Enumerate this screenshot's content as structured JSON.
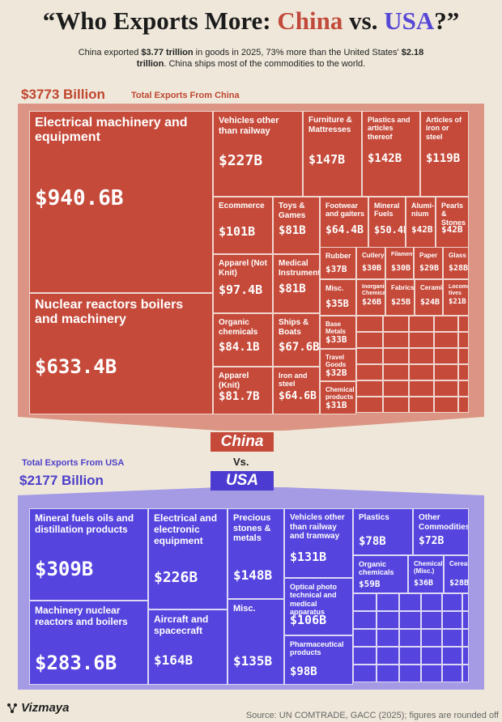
{
  "header": {
    "title_prefix": "“Who Exports More: ",
    "title_china": "China",
    "title_vs": " vs. ",
    "title_usa": "USA",
    "title_suffix": "?”",
    "subtitle_1": "China exported ",
    "subtitle_2": "$3.77 trillion",
    "subtitle_3": " in goods in 2025, 73% more than the United States' ",
    "subtitle_4": "$2.18 trillion",
    "subtitle_5": ". China ships most of the commodities to the world."
  },
  "china_total": {
    "value": "$3773 Billion",
    "label": "Total Exports From China"
  },
  "usa_total": {
    "value": "$2177 Billion",
    "label": "Total Exports From USA"
  },
  "badges": {
    "china": "China",
    "vs": "Vs.",
    "usa": "USA"
  },
  "footer": {
    "brand": "Vizmaya",
    "source": "Source: UN COMTRADE, GACC (2025); figures are rounded off"
  },
  "colors": {
    "china": "#c54a3a",
    "usa": "#5544dd",
    "china_funnel": "#dc9584",
    "usa_funnel": "#a49be4",
    "background": "#efe8da"
  },
  "chart_data": [
    {
      "type": "treemap",
      "title": "Total Exports From China",
      "total": "$3773 Billion",
      "items": [
        {
          "label": "Electrical machinery and equipment",
          "value_label": "$940.6B",
          "value": 940.6
        },
        {
          "label": "Nuclear reactors boilers and machinery",
          "value_label": "$633.4B",
          "value": 633.4
        },
        {
          "label": "Vehicles other than railway",
          "value_label": "$227B",
          "value": 227
        },
        {
          "label": "Furniture & Mattresses",
          "value_label": "$147B",
          "value": 147
        },
        {
          "label": "Plastics and articles thereof",
          "value_label": "$142B",
          "value": 142
        },
        {
          "label": "Articles of iron or steel",
          "value_label": "$119B",
          "value": 119
        },
        {
          "label": "Ecommerce",
          "value_label": "$101B",
          "value": 101
        },
        {
          "label": "Toys & Games",
          "value_label": "$81B",
          "value": 81
        },
        {
          "label": "Footwear and gaiters",
          "value_label": "$64.4B",
          "value": 64.4
        },
        {
          "label": "Mineral Fuels",
          "value_label": "$50.4B",
          "value": 50.4
        },
        {
          "label": "Alumi- nium",
          "value_label": "$42B",
          "value": 42
        },
        {
          "label": "Pearls & Stones",
          "value_label": "$42B",
          "value": 42
        },
        {
          "label": "Apparel (Not Knit)",
          "value_label": "$97.4B",
          "value": 97.4
        },
        {
          "label": "Medical Instruments",
          "value_label": "$81B",
          "value": 81
        },
        {
          "label": "Rubber",
          "value_label": "$37B",
          "value": 37
        },
        {
          "label": "Cutlery",
          "value_label": "$30B",
          "value": 30
        },
        {
          "label": "Filaments",
          "value_label": "$30B",
          "value": 30
        },
        {
          "label": "Paper",
          "value_label": "$29B",
          "value": 29
        },
        {
          "label": "Glass",
          "value_label": "$28B",
          "value": 28
        },
        {
          "label": "Misc.",
          "value_label": "$35B",
          "value": 35
        },
        {
          "label": "Inorganic Chemicals",
          "value_label": "$26B",
          "value": 26
        },
        {
          "label": "Fabrics",
          "value_label": "$25B",
          "value": 25
        },
        {
          "label": "Ceramic",
          "value_label": "$24B",
          "value": 24
        },
        {
          "label": "Locomo tives",
          "value_label": "$21B",
          "value": 21
        },
        {
          "label": "Organic chemicals",
          "value_label": "$84.1B",
          "value": 84.1
        },
        {
          "label": "Ships & Boats",
          "value_label": "$67.6B",
          "value": 67.6
        },
        {
          "label": "Base Metals",
          "value_label": "$33B",
          "value": 33
        },
        {
          "label": "Travel Goods",
          "value_label": "$32B",
          "value": 32
        },
        {
          "label": "Apparel (Knit)",
          "value_label": "$81.7B",
          "value": 81.7
        },
        {
          "label": "Iron and steel",
          "value_label": "$64.6B",
          "value": 64.6
        },
        {
          "label": "Chemical products",
          "value_label": "$31B",
          "value": 31
        }
      ]
    },
    {
      "type": "treemap",
      "title": "Total Exports From USA",
      "total": "$2177 Billion",
      "items": [
        {
          "label": "Mineral fuels oils and distillation products",
          "value_label": "$309B",
          "value": 309
        },
        {
          "label": "Machinery nuclear reactors and boilers",
          "value_label": "$283.6B",
          "value": 283.6
        },
        {
          "label": "Electrical and electronic equipment",
          "value_label": "$226B",
          "value": 226
        },
        {
          "label": "Aircraft and spacecraft",
          "value_label": "$164B",
          "value": 164
        },
        {
          "label": "Precious stones & metals",
          "value_label": "$148B",
          "value": 148
        },
        {
          "label": "Misc.",
          "value_label": "$135B",
          "value": 135
        },
        {
          "label": "Vehicles other than railway and tramway",
          "value_label": "$131B",
          "value": 131
        },
        {
          "label": "Optical photo technical and medical apparatus",
          "value_label": "$106B",
          "value": 106
        },
        {
          "label": "Pharmaceutical products",
          "value_label": "$98B",
          "value": 98
        },
        {
          "label": "Plastics",
          "value_label": "$78B",
          "value": 78
        },
        {
          "label": "Other Commodities",
          "value_label": "$72B",
          "value": 72
        },
        {
          "label": "Organic chemicals",
          "value_label": "$59B",
          "value": 59
        },
        {
          "label": "Chemicals (Misc.)",
          "value_label": "$36B",
          "value": 36
        },
        {
          "label": "Cereals",
          "value_label": "$28B",
          "value": 28
        }
      ]
    }
  ]
}
